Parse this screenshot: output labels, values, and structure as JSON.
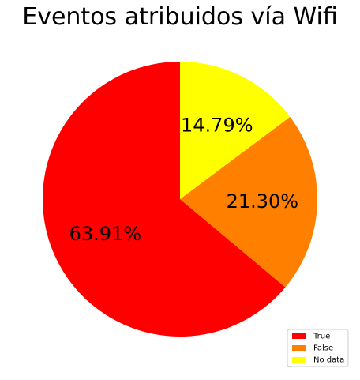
{
  "chart_data": {
    "type": "pie",
    "title": "Eventos atribuidos vía Wifi",
    "start_angle_deg": 90,
    "direction": "counterclockwise",
    "legend_position": "lower-right",
    "slices": [
      {
        "label": "True",
        "value": 63.91,
        "display": "63.91%",
        "color": "#ff0000"
      },
      {
        "label": "False",
        "value": 21.3,
        "display": "21.30%",
        "color": "#ff7f00"
      },
      {
        "label": "No data",
        "value": 14.79,
        "display": "14.79%",
        "color": "#ffff00"
      }
    ]
  }
}
